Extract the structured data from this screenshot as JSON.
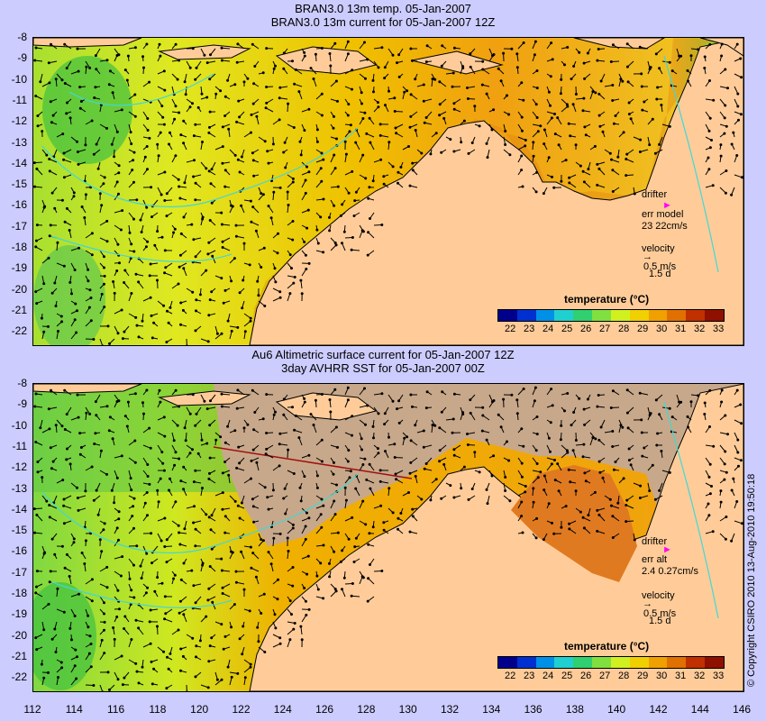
{
  "top_panel": {
    "title_line1": "BRAN3.0 13m temp. 05-Jan-2007",
    "title_line2": "BRAN3.0 13m current for 05-Jan-2007 12Z",
    "drifter_label": "drifter",
    "err_label": "err model",
    "err_value": "23 22cm/s",
    "velocity_label": "velocity",
    "velocity_scale": "0.5 m/s",
    "velocity_time": "1.5 d",
    "colorbar_title": "temperature (°C)"
  },
  "bottom_panel": {
    "title_line1": "Au6 Altimetric surface current for 05-Jan-2007 12Z",
    "title_line2": "3day AVHRR SST for 05-Jan-2007 00Z",
    "drifter_label": "drifter",
    "err_label": "err alt",
    "err_value": "2.4 0.27cm/s",
    "velocity_label": "velocity",
    "velocity_scale": "0.5 m/s",
    "velocity_time": "1.5 d",
    "colorbar_title": "temperature (°C)"
  },
  "y_ticks": [
    "-8",
    "-9",
    "-10",
    "-11",
    "-12",
    "-13",
    "-14",
    "-15",
    "-16",
    "-17",
    "-18",
    "-19",
    "-20",
    "-21",
    "-22"
  ],
  "x_ticks": [
    "112",
    "114",
    "116",
    "118",
    "120",
    "122",
    "124",
    "126",
    "128",
    "130",
    "132",
    "134",
    "136",
    "138",
    "140",
    "142",
    "144",
    "146"
  ],
  "colorbar_ticks": [
    "22",
    "23",
    "24",
    "25",
    "26",
    "27",
    "28",
    "29",
    "30",
    "31",
    "32",
    "33"
  ],
  "colorbar_colors": [
    "#00008c",
    "#0030d0",
    "#0090e8",
    "#20d0d0",
    "#30d070",
    "#80e040",
    "#d0f020",
    "#f0d000",
    "#f0a000",
    "#e07000",
    "#c03000",
    "#901000"
  ],
  "copyright": "© Copyright CSIRO 2010    13-Aug-2010 19:50:18",
  "colors": {
    "land": "#ffcc99",
    "cloud": "#c8a88a",
    "drifter": "#ff00ff",
    "contour": "#40d8d8"
  }
}
